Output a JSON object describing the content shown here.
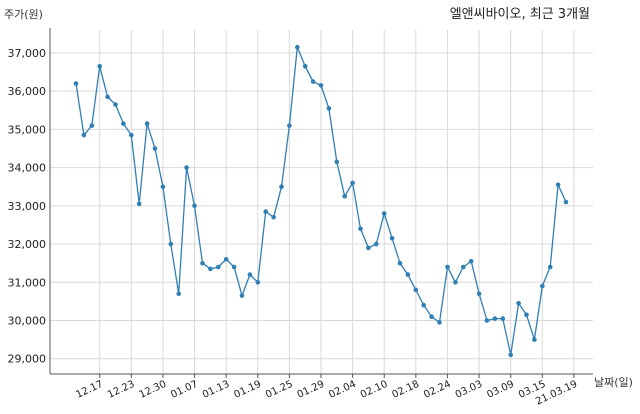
{
  "chart_data": {
    "type": "line",
    "title": "엘앤씨바이오, 최근 3개월",
    "ylabel": "주가(원)",
    "xlabel": "날짜(일)",
    "ylim": [
      28600,
      37600
    ],
    "yticks": [
      29000,
      30000,
      31000,
      32000,
      33000,
      34000,
      35000,
      36000,
      37000
    ],
    "ytick_labels": [
      "29,000",
      "30,000",
      "31,000",
      "32,000",
      "33,000",
      "34,000",
      "35,000",
      "36,000",
      "37,000"
    ],
    "xtick_labels": [
      "12.17",
      "12.23",
      "12.30",
      "01.07",
      "01.13",
      "01.19",
      "01.25",
      "01.29",
      "02.04",
      "02.10",
      "02.18",
      "02.24",
      "03.03",
      "03.09",
      "03.15",
      "21.03.19"
    ],
    "xtick_positions": [
      3,
      7,
      11,
      15,
      19,
      23,
      27,
      31,
      35,
      39,
      43,
      47,
      51,
      55,
      59,
      63
    ],
    "grid": true,
    "series": [
      {
        "color": "#2f7fb5",
        "values": [
          36200,
          34850,
          35100,
          36650,
          35850,
          35650,
          35150,
          34850,
          33050,
          35150,
          34500,
          33500,
          32000,
          30700,
          34000,
          33000,
          31500,
          31350,
          31400,
          31600,
          31400,
          30650,
          31200,
          31000,
          32850,
          32700,
          33500,
          35100,
          37150,
          36650,
          36250,
          36150,
          35550,
          34150,
          33250,
          33600,
          32400,
          31900,
          32000,
          32800,
          32150,
          31500,
          31200,
          30800,
          30400,
          30100,
          29950,
          31400,
          31000,
          31400,
          31550,
          30700,
          30000,
          30050,
          30050,
          29100,
          30450,
          30150,
          29500,
          30900,
          31400,
          33550,
          33100
        ]
      }
    ]
  }
}
